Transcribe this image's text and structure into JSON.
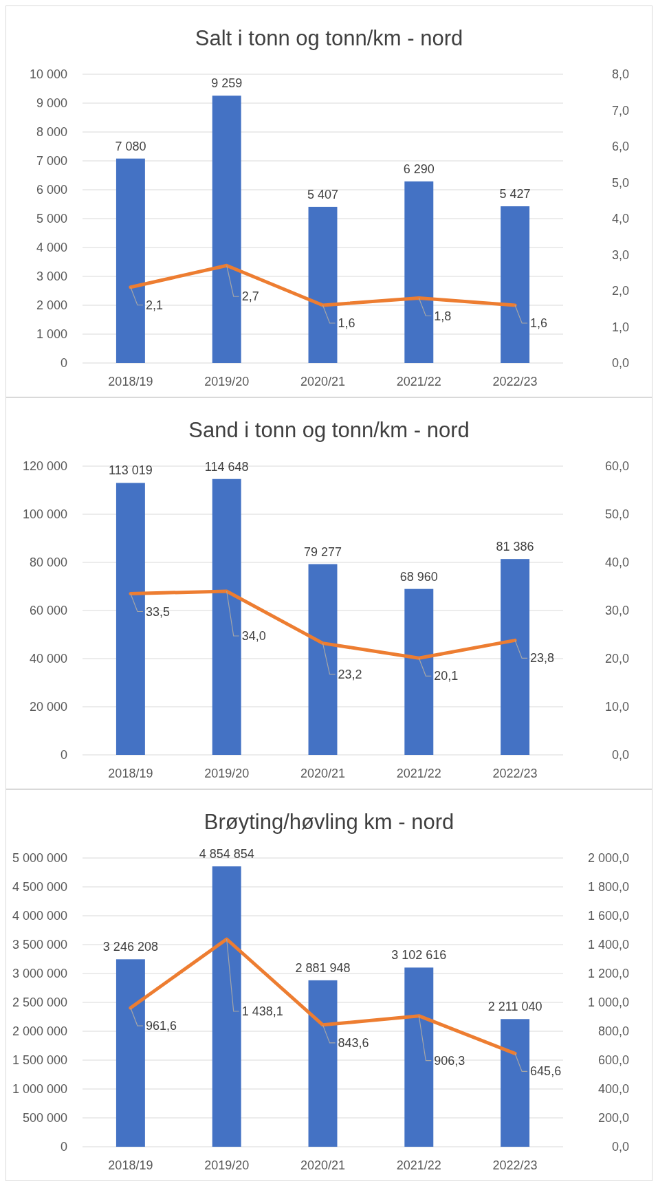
{
  "chart_data": [
    {
      "type": "bar",
      "title": "Salt i tonn og tonn/km - nord",
      "categories": [
        "2018/19",
        "2019/20",
        "2020/21",
        "2021/22",
        "2022/23"
      ],
      "series": [
        {
          "color": "#4472c4",
          "values": [
            7080,
            9259,
            5407,
            6290,
            5427
          ],
          "value_labels": [
            "7 080",
            "9 259",
            "5 407",
            "6 290",
            "5 427"
          ]
        },
        {
          "type": "line",
          "axis": "y2",
          "color": "#ed7d31",
          "values": [
            2.1,
            2.7,
            1.6,
            1.8,
            1.6
          ],
          "value_labels": [
            "2,1",
            "2,7",
            "1,6",
            "1,8",
            "1,6"
          ]
        }
      ],
      "ylim": [
        0,
        10000
      ],
      "yticks": [
        {
          "value": 0,
          "label": "0"
        },
        {
          "value": 1000,
          "label": "1 000"
        },
        {
          "value": 2000,
          "label": "2 000"
        },
        {
          "value": 3000,
          "label": "3 000"
        },
        {
          "value": 4000,
          "label": "4 000"
        },
        {
          "value": 5000,
          "label": "5 000"
        },
        {
          "value": 6000,
          "label": "6 000"
        },
        {
          "value": 7000,
          "label": "7 000"
        },
        {
          "value": 8000,
          "label": "8 000"
        },
        {
          "value": 9000,
          "label": "9 000"
        },
        {
          "value": 10000,
          "label": "10 000"
        }
      ],
      "y2lim": [
        0,
        8
      ],
      "y2ticks": [
        {
          "value": 0,
          "label": "0,0"
        },
        {
          "value": 1,
          "label": "1,0"
        },
        {
          "value": 2,
          "label": "2,0"
        },
        {
          "value": 3,
          "label": "3,0"
        },
        {
          "value": 4,
          "label": "4,0"
        },
        {
          "value": 5,
          "label": "5,0"
        },
        {
          "value": 6,
          "label": "6,0"
        },
        {
          "value": 7,
          "label": "7,0"
        },
        {
          "value": 8,
          "label": "8,0"
        }
      ],
      "grid": "y",
      "marker": "none"
    },
    {
      "type": "bar",
      "title": "Sand i tonn og tonn/km - nord",
      "categories": [
        "2018/19",
        "2019/20",
        "2020/21",
        "2021/22",
        "2022/23"
      ],
      "series": [
        {
          "color": "#4472c4",
          "values": [
            113019,
            114648,
            79277,
            68960,
            81386
          ],
          "value_labels": [
            "113 019",
            "114 648",
            "79 277",
            "68 960",
            "81 386"
          ]
        },
        {
          "type": "line",
          "axis": "y2",
          "color": "#ed7d31",
          "values": [
            33.5,
            34.0,
            23.2,
            20.1,
            23.8
          ],
          "value_labels": [
            "33,5",
            "34,0",
            "23,2",
            "20,1",
            "23,8"
          ]
        }
      ],
      "ylim": [
        0,
        120000
      ],
      "yticks": [
        {
          "value": 0,
          "label": "0"
        },
        {
          "value": 20000,
          "label": "20 000"
        },
        {
          "value": 40000,
          "label": "40 000"
        },
        {
          "value": 60000,
          "label": "60 000"
        },
        {
          "value": 80000,
          "label": "80 000"
        },
        {
          "value": 100000,
          "label": "100 000"
        },
        {
          "value": 120000,
          "label": "120 000"
        }
      ],
      "y2lim": [
        0,
        60
      ],
      "y2ticks": [
        {
          "value": 0,
          "label": "0,0"
        },
        {
          "value": 10,
          "label": "10,0"
        },
        {
          "value": 20,
          "label": "20,0"
        },
        {
          "value": 30,
          "label": "30,0"
        },
        {
          "value": 40,
          "label": "40,0"
        },
        {
          "value": 50,
          "label": "50,0"
        },
        {
          "value": 60,
          "label": "60,0"
        }
      ],
      "grid": "y",
      "marker": "none"
    },
    {
      "type": "bar",
      "title": "Brøyting/høvling km - nord",
      "categories": [
        "2018/19",
        "2019/20",
        "2020/21",
        "2021/22",
        "2022/23"
      ],
      "series": [
        {
          "color": "#4472c4",
          "values": [
            3246208,
            4854854,
            2881948,
            3102616,
            2211040
          ],
          "value_labels": [
            "3 246 208",
            "4 854 854",
            "2 881 948",
            "3 102 616",
            "2 211 040"
          ]
        },
        {
          "type": "line",
          "axis": "y2",
          "color": "#ed7d31",
          "values": [
            961.6,
            1438.1,
            843.6,
            906.3,
            645.6
          ],
          "value_labels": [
            "961,6",
            "1 438,1",
            "843,6",
            "906,3",
            "645,6"
          ]
        }
      ],
      "ylim": [
        0,
        5000000
      ],
      "yticks": [
        {
          "value": 0,
          "label": "0"
        },
        {
          "value": 500000,
          "label": "500 000"
        },
        {
          "value": 1000000,
          "label": "1 000 000"
        },
        {
          "value": 1500000,
          "label": "1 500 000"
        },
        {
          "value": 2000000,
          "label": "2 000 000"
        },
        {
          "value": 2500000,
          "label": "2 500 000"
        },
        {
          "value": 3000000,
          "label": "3 000 000"
        },
        {
          "value": 3500000,
          "label": "3 500 000"
        },
        {
          "value": 4000000,
          "label": "4 000 000"
        },
        {
          "value": 4500000,
          "label": "4 500 000"
        },
        {
          "value": 5000000,
          "label": "5 000 000"
        }
      ],
      "y2lim": [
        0,
        2000
      ],
      "y2ticks": [
        {
          "value": 0,
          "label": "0,0"
        },
        {
          "value": 200,
          "label": "200,0"
        },
        {
          "value": 400,
          "label": "400,0"
        },
        {
          "value": 600,
          "label": "600,0"
        },
        {
          "value": 800,
          "label": "800,0"
        },
        {
          "value": 1000,
          "label": "1 000,0"
        },
        {
          "value": 1200,
          "label": "1 200,0"
        },
        {
          "value": 1400,
          "label": "1 400,0"
        },
        {
          "value": 1600,
          "label": "1 600,0"
        },
        {
          "value": 1800,
          "label": "1 800,0"
        },
        {
          "value": 2000,
          "label": "2 000,0"
        }
      ],
      "grid": "y",
      "marker": "none"
    }
  ]
}
